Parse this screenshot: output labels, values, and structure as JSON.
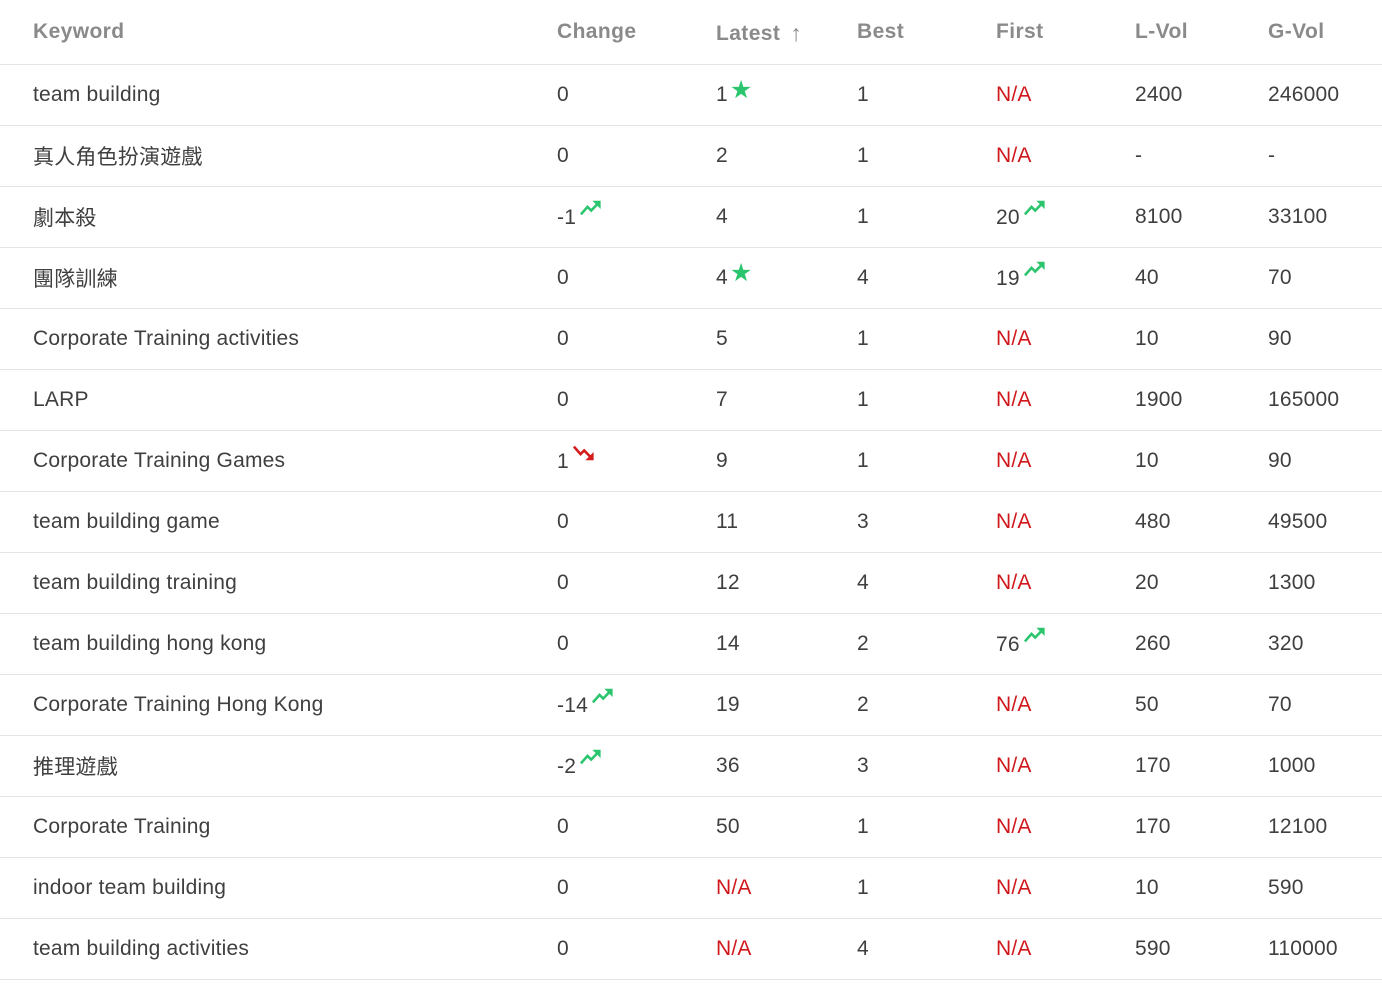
{
  "table": {
    "sorted_by": "Latest",
    "sort_direction": "ascending",
    "sort_icon": "↑",
    "columns": [
      {
        "key": "keyword",
        "label": "Keyword"
      },
      {
        "key": "change",
        "label": "Change"
      },
      {
        "key": "latest",
        "label": "Latest"
      },
      {
        "key": "best",
        "label": "Best"
      },
      {
        "key": "first",
        "label": "First"
      },
      {
        "key": "lvol",
        "label": "L-Vol"
      },
      {
        "key": "gvol",
        "label": "G-Vol"
      }
    ],
    "rows": [
      {
        "keyword": "team building",
        "change": {
          "value": "0"
        },
        "latest": {
          "value": "1",
          "star": true
        },
        "best": "1",
        "first": {
          "value": "N/A"
        },
        "lvol": "2400",
        "gvol": "246000"
      },
      {
        "keyword": "真人角色扮演遊戲",
        "change": {
          "value": "0"
        },
        "latest": {
          "value": "2"
        },
        "best": "1",
        "first": {
          "value": "N/A"
        },
        "lvol": "-",
        "gvol": "-"
      },
      {
        "keyword": "劇本殺",
        "change": {
          "value": "-1",
          "trend": "up"
        },
        "latest": {
          "value": "4"
        },
        "best": "1",
        "first": {
          "value": "20",
          "trend": "up"
        },
        "lvol": "8100",
        "gvol": "33100"
      },
      {
        "keyword": "團隊訓練",
        "change": {
          "value": "0"
        },
        "latest": {
          "value": "4",
          "star": true
        },
        "best": "4",
        "first": {
          "value": "19",
          "trend": "up"
        },
        "lvol": "40",
        "gvol": "70"
      },
      {
        "keyword": "Corporate Training activities",
        "change": {
          "value": "0"
        },
        "latest": {
          "value": "5"
        },
        "best": "1",
        "first": {
          "value": "N/A"
        },
        "lvol": "10",
        "gvol": "90"
      },
      {
        "keyword": "LARP",
        "change": {
          "value": "0"
        },
        "latest": {
          "value": "7"
        },
        "best": "1",
        "first": {
          "value": "N/A"
        },
        "lvol": "1900",
        "gvol": "165000"
      },
      {
        "keyword": "Corporate Training Games",
        "change": {
          "value": "1",
          "trend": "down"
        },
        "latest": {
          "value": "9"
        },
        "best": "1",
        "first": {
          "value": "N/A"
        },
        "lvol": "10",
        "gvol": "90"
      },
      {
        "keyword": "team building game",
        "change": {
          "value": "0"
        },
        "latest": {
          "value": "11"
        },
        "best": "3",
        "first": {
          "value": "N/A"
        },
        "lvol": "480",
        "gvol": "49500"
      },
      {
        "keyword": "team building training",
        "change": {
          "value": "0"
        },
        "latest": {
          "value": "12"
        },
        "best": "4",
        "first": {
          "value": "N/A"
        },
        "lvol": "20",
        "gvol": "1300"
      },
      {
        "keyword": "team building hong kong",
        "change": {
          "value": "0"
        },
        "latest": {
          "value": "14"
        },
        "best": "2",
        "first": {
          "value": "76",
          "trend": "up"
        },
        "lvol": "260",
        "gvol": "320"
      },
      {
        "keyword": "Corporate Training Hong Kong",
        "change": {
          "value": "-14",
          "trend": "up"
        },
        "latest": {
          "value": "19"
        },
        "best": "2",
        "first": {
          "value": "N/A"
        },
        "lvol": "50",
        "gvol": "70"
      },
      {
        "keyword": "推理遊戲",
        "change": {
          "value": "-2",
          "trend": "up"
        },
        "latest": {
          "value": "36"
        },
        "best": "3",
        "first": {
          "value": "N/A"
        },
        "lvol": "170",
        "gvol": "1000"
      },
      {
        "keyword": "Corporate Training",
        "change": {
          "value": "0"
        },
        "latest": {
          "value": "50"
        },
        "best": "1",
        "first": {
          "value": "N/A"
        },
        "lvol": "170",
        "gvol": "12100"
      },
      {
        "keyword": "indoor team building",
        "change": {
          "value": "0"
        },
        "latest": {
          "value": "N/A"
        },
        "best": "1",
        "first": {
          "value": "N/A"
        },
        "lvol": "10",
        "gvol": "590"
      },
      {
        "keyword": "team building activities",
        "change": {
          "value": "0"
        },
        "latest": {
          "value": "N/A"
        },
        "best": "4",
        "first": {
          "value": "N/A"
        },
        "lvol": "590",
        "gvol": "110000"
      }
    ]
  },
  "icons": {
    "sort_ascending": "up-arrow-icon",
    "top_rank": "star-icon",
    "improving": "trend-up-icon",
    "declining": "trend-down-icon"
  },
  "colors": {
    "positive": "#2bc56e",
    "negative": "#d41c1c",
    "na_text": "#d0181c",
    "header_text": "#8a8a8a",
    "body_text": "#3f3f3f",
    "divider": "#e4e4e4"
  }
}
